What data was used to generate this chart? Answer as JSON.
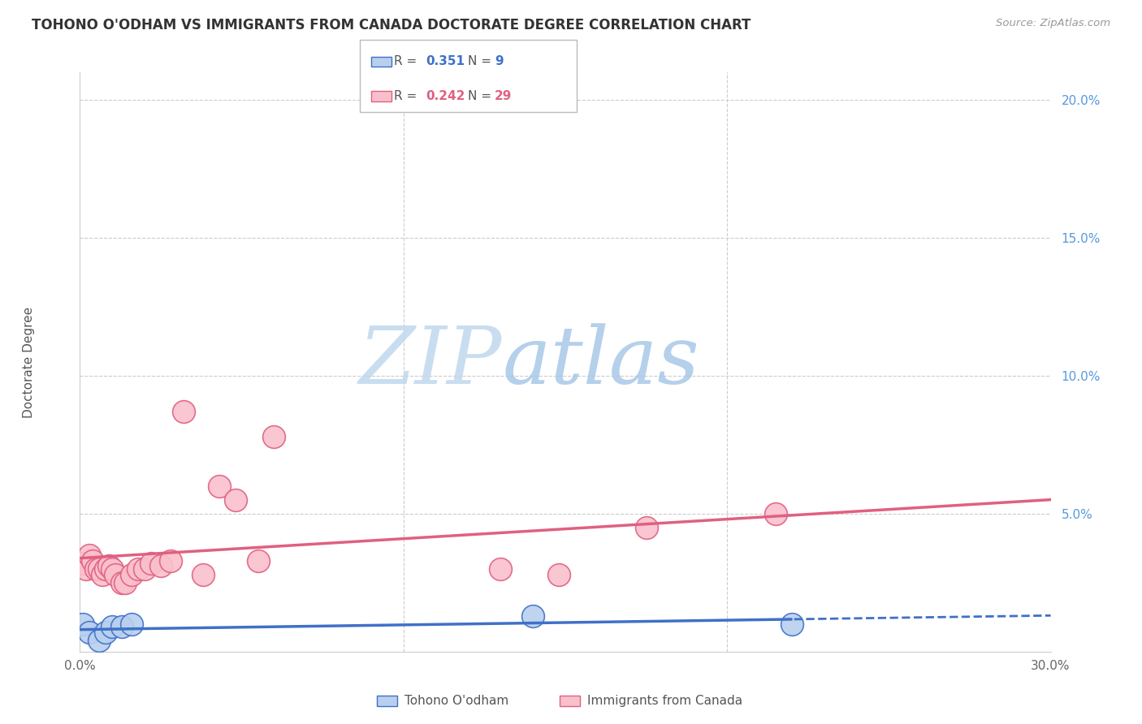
{
  "title": "TOHONO O'ODHAM VS IMMIGRANTS FROM CANADA DOCTORATE DEGREE CORRELATION CHART",
  "source": "Source: ZipAtlas.com",
  "ylabel": "Doctorate Degree",
  "xlim": [
    0.0,
    0.3
  ],
  "ylim": [
    0.0,
    0.21
  ],
  "yticks": [
    0.0,
    0.05,
    0.1,
    0.15,
    0.2
  ],
  "ytick_labels": [
    "",
    "5.0%",
    "10.0%",
    "15.0%",
    "20.0%"
  ],
  "xticks": [
    0.0,
    0.1,
    0.2,
    0.3
  ],
  "xtick_labels": [
    "0.0%",
    "",
    "",
    "30.0%"
  ],
  "blue_R": "0.351",
  "blue_N": "9",
  "pink_R": "0.242",
  "pink_N": "29",
  "blue_fill": "#B8D0EE",
  "pink_fill": "#F9C0CC",
  "blue_edge": "#4070C8",
  "pink_edge": "#E06080",
  "watermark_color": "#D5E8F5",
  "legend_label_blue": "Tohono O'odham",
  "legend_label_pink": "Immigrants from Canada",
  "blue_x": [
    0.001,
    0.003,
    0.006,
    0.008,
    0.01,
    0.013,
    0.016,
    0.14,
    0.22
  ],
  "blue_y": [
    0.01,
    0.007,
    0.004,
    0.007,
    0.009,
    0.009,
    0.01,
    0.013,
    0.01
  ],
  "pink_x": [
    0.001,
    0.002,
    0.003,
    0.004,
    0.005,
    0.006,
    0.007,
    0.008,
    0.009,
    0.01,
    0.011,
    0.013,
    0.014,
    0.016,
    0.018,
    0.02,
    0.022,
    0.025,
    0.028,
    0.032,
    0.038,
    0.043,
    0.048,
    0.055,
    0.06,
    0.13,
    0.148,
    0.175,
    0.215
  ],
  "pink_y": [
    0.032,
    0.03,
    0.035,
    0.033,
    0.03,
    0.03,
    0.028,
    0.03,
    0.031,
    0.03,
    0.028,
    0.025,
    0.025,
    0.028,
    0.03,
    0.03,
    0.032,
    0.031,
    0.033,
    0.087,
    0.028,
    0.06,
    0.055,
    0.033,
    0.078,
    0.03,
    0.028,
    0.045,
    0.05
  ]
}
